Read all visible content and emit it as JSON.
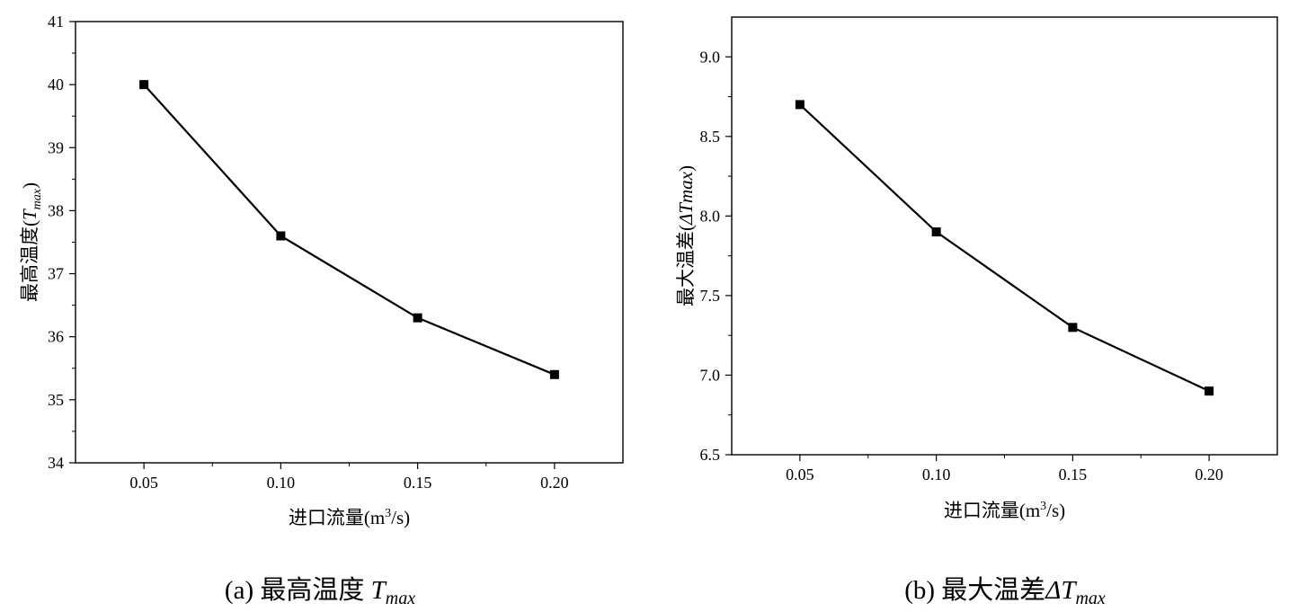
{
  "chart_data": [
    {
      "type": "line",
      "caption": {
        "prefix": "(a)  最高温度 ",
        "symbol": "T",
        "subscript": "max"
      },
      "xlabel": {
        "main": "进口流量(m",
        "sup": "3",
        "tail": "/s)"
      },
      "ylabel": {
        "main": "最高温度(",
        "symbol": "T",
        "subscript": "max",
        "tail": ")"
      },
      "x": [
        0.05,
        0.1,
        0.15,
        0.2
      ],
      "xticks": [
        "0.05",
        "0.10",
        "0.15",
        "0.20"
      ],
      "xlim": [
        0.025,
        0.225
      ],
      "y": [
        40.0,
        37.6,
        36.3,
        35.4
      ],
      "ylim": [
        34,
        41
      ],
      "yticks": [
        "34",
        "35",
        "36",
        "37",
        "38",
        "39",
        "40",
        "41"
      ],
      "marker": "square",
      "color": "#000000",
      "grid": false
    },
    {
      "type": "line",
      "caption": {
        "prefix": "(b)  最大温差",
        "symbol": "ΔT",
        "subscript": "max"
      },
      "xlabel": {
        "main": "进口流量(m",
        "sup": "3",
        "tail": "/s)"
      },
      "ylabel": {
        "main": "最大温差(",
        "symbol": "ΔTmax",
        "subscript": "",
        "tail": ")"
      },
      "x": [
        0.05,
        0.1,
        0.15,
        0.2
      ],
      "xticks": [
        "0.05",
        "0.10",
        "0.15",
        "0.20"
      ],
      "xlim": [
        0.025,
        0.225
      ],
      "y": [
        8.7,
        7.9,
        7.3,
        6.9
      ],
      "ylim": [
        6.5,
        9.25
      ],
      "yticks": [
        "6.5",
        "7.0",
        "7.5",
        "8.0",
        "8.5",
        "9.0"
      ],
      "marker": "square",
      "color": "#000000",
      "grid": false
    }
  ]
}
